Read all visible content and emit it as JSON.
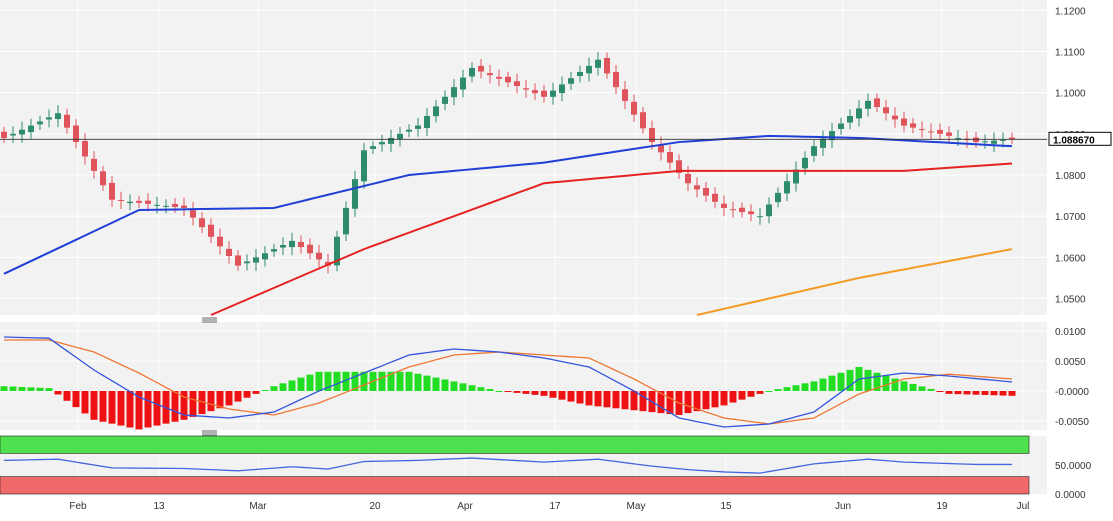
{
  "colors": {
    "up": "#2e8b6e",
    "down": "#e0535a",
    "sma50": "#1f3fd6",
    "sma100": "#e52222",
    "sma200": "#f59a23",
    "macd": "#3355dd",
    "signal": "#ee7733",
    "hist_pos": "#22dd22",
    "hist_neg": "#ee1111",
    "rsi": "#4466dd",
    "rsi_over": "#4fe04f",
    "rsi_under": "#f06a6a",
    "panel_bg": "#f2f2f2",
    "grid": "#ffffff"
  },
  "last_price_label": "1.088670",
  "chart_data": [
    {
      "type": "candlestick",
      "name": "price",
      "y_ticks": [
        "1.1200",
        "1.1100",
        "1.1000",
        "1.0900",
        "1.0800",
        "1.0700",
        "1.0600",
        "1.0500"
      ],
      "ylim": [
        1.046,
        1.1225
      ],
      "x_ticks": [
        "Feb",
        "13",
        "Mar",
        "20",
        "Apr",
        "17",
        "May",
        "15",
        "Jun",
        "19",
        "Jul"
      ],
      "last_price": 1.08867,
      "key_points": {
        "bar_index": [
          0,
          6,
          12,
          20,
          26,
          32,
          36,
          40,
          46,
          52,
          60,
          66,
          72,
          76,
          80,
          84,
          90,
          96,
          100,
          104,
          108,
          112
        ],
        "close": [
          1.089,
          1.095,
          1.074,
          1.072,
          1.058,
          1.064,
          1.058,
          1.086,
          1.092,
          1.106,
          1.099,
          1.108,
          1.088,
          1.078,
          1.072,
          1.07,
          1.087,
          1.098,
          1.092,
          1.09,
          1.088,
          1.0887
        ]
      },
      "sma50_key": {
        "bar_index": [
          0,
          15,
          30,
          45,
          60,
          75,
          85,
          95,
          112
        ],
        "value": [
          1.056,
          1.0715,
          1.072,
          1.08,
          1.083,
          1.088,
          1.0895,
          1.089,
          1.087
        ]
      },
      "sma100_key": {
        "bar_index": [
          23,
          40,
          60,
          75,
          85,
          100,
          112
        ],
        "value": [
          1.046,
          1.062,
          1.078,
          1.081,
          1.081,
          1.081,
          1.0828
        ]
      },
      "sma200_key": {
        "bar_index": [
          77,
          95,
          112
        ],
        "value": [
          1.046,
          1.055,
          1.062
        ]
      }
    },
    {
      "type": "macd",
      "name": "macd",
      "y_ticks": [
        "0.0100",
        "0.0050",
        "-0.0000",
        "-0.0050"
      ],
      "ylim": [
        -0.0065,
        0.0115
      ],
      "macd_key": {
        "bar_index": [
          0,
          5,
          10,
          15,
          20,
          25,
          30,
          35,
          40,
          45,
          50,
          55,
          60,
          65,
          70,
          75,
          80,
          85,
          90,
          95,
          100,
          105,
          112
        ],
        "value": [
          0.009,
          0.0088,
          0.0035,
          -0.001,
          -0.004,
          -0.0045,
          -0.0035,
          0.0,
          0.003,
          0.006,
          0.007,
          0.0065,
          0.0055,
          0.004,
          0.0,
          -0.0045,
          -0.006,
          -0.0055,
          -0.0035,
          0.002,
          0.003,
          0.0025,
          0.0015
        ]
      },
      "signal_key": {
        "bar_index": [
          0,
          5,
          10,
          15,
          20,
          25,
          30,
          35,
          40,
          45,
          50,
          55,
          60,
          65,
          70,
          75,
          80,
          85,
          90,
          95,
          100,
          105,
          112
        ],
        "value": [
          0.0085,
          0.0085,
          0.0065,
          0.003,
          -0.001,
          -0.003,
          -0.004,
          -0.002,
          0.001,
          0.004,
          0.006,
          0.0065,
          0.006,
          0.0055,
          0.002,
          -0.002,
          -0.0045,
          -0.0055,
          -0.0045,
          -0.0005,
          0.002,
          0.0028,
          0.002
        ]
      }
    },
    {
      "type": "rsi",
      "name": "rsi",
      "y_ticks": [
        "50.0000",
        "0.0000"
      ],
      "ylim": [
        0,
        100
      ],
      "overbought": 70,
      "oversold": 30,
      "rsi_key": {
        "bar_index": [
          0,
          6,
          12,
          20,
          26,
          32,
          36,
          40,
          46,
          52,
          60,
          66,
          72,
          76,
          80,
          84,
          90,
          96,
          100,
          104,
          108,
          112
        ],
        "value": [
          58,
          60,
          45,
          44,
          40,
          47,
          43,
          56,
          58,
          62,
          55,
          60,
          48,
          42,
          38,
          36,
          52,
          60,
          55,
          53,
          51,
          51
        ]
      }
    }
  ]
}
